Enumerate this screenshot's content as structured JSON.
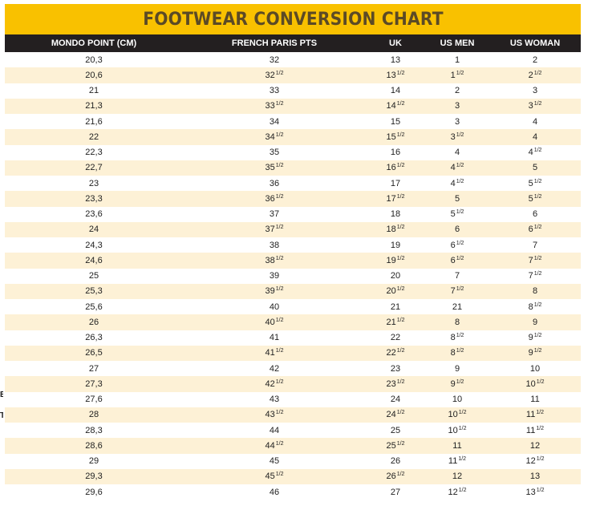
{
  "title": "FOOTWEAR CONVERSION CHART",
  "columns": [
    "MONDO POINT (CM)",
    "FRENCH PARIS PTS",
    "UK",
    "US MEN",
    "US WOMAN"
  ],
  "rows": [
    [
      "20,3",
      "32",
      "13",
      "1",
      "2"
    ],
    [
      "20,6",
      "32 1/2",
      "13 1/2",
      "1 1/2",
      "2 1/2"
    ],
    [
      "21",
      "33",
      "14",
      "2",
      "3"
    ],
    [
      "21,3",
      "33 1/2",
      "14 1/2",
      "3",
      "3 1/2"
    ],
    [
      "21,6",
      "34",
      "15",
      "3",
      "4"
    ],
    [
      "22",
      "34 1/2",
      "15 1/2",
      "3 1/2",
      "4"
    ],
    [
      "22,3",
      "35",
      "16",
      "4",
      "4 1/2"
    ],
    [
      "22,7",
      "35 1/2",
      "16 1/2",
      "4 1/2",
      "5"
    ],
    [
      "23",
      "36",
      "17",
      "4 1/2",
      "5 1/2"
    ],
    [
      "23,3",
      "36 1/2",
      "17 1/2",
      "5",
      "5 1/2"
    ],
    [
      "23,6",
      "37",
      "18",
      "5 1/2",
      "6"
    ],
    [
      "24",
      "37 1/2",
      "18 1/2",
      "6",
      "6 1/2"
    ],
    [
      "24,3",
      "38",
      "19",
      "6 1/2",
      "7"
    ],
    [
      "24,6",
      "38 1/2",
      "19 1/2",
      "6 1/2",
      "7 1/2"
    ],
    [
      "25",
      "39",
      "20",
      "7",
      "7 1/2"
    ],
    [
      "25,3",
      "39 1/2",
      "20 1/2",
      "7 1/2",
      "8"
    ],
    [
      "25,6",
      "40",
      "21",
      "21",
      "8 1/2"
    ],
    [
      "26",
      "40 1/2",
      "21 1/2",
      "8",
      "9"
    ],
    [
      "26,3",
      "41",
      "22",
      "8 1/2",
      "9 1/2"
    ],
    [
      "26,5",
      "41 1/2",
      "22 1/2",
      "8 1/2",
      "9 1/2"
    ],
    [
      "27",
      "42",
      "23",
      "9",
      "10"
    ],
    [
      "27,3",
      "42 1/2",
      "23 1/2",
      "9 1/2",
      "10 1/2"
    ],
    [
      "27,6",
      "43",
      "24",
      "10",
      "11"
    ],
    [
      "28",
      "43 1/2",
      "24 1/2",
      "10 1/2",
      "11 1/2"
    ],
    [
      "28,3",
      "44",
      "25",
      "10 1/2",
      "11 1/2"
    ],
    [
      "28,6",
      "44 1/2",
      "25 1/2",
      "11",
      "12"
    ],
    [
      "29",
      "45",
      "26",
      "11 1/2",
      "12 1/2"
    ],
    [
      "29,3",
      "45 1/2",
      "26 1/2",
      "12",
      "13"
    ],
    [
      "29,6",
      "46",
      "27",
      "12 1/2",
      "13 1/2"
    ]
  ],
  "edge_marks": [
    "E",
    "T"
  ],
  "colors": {
    "title_bg": "#f9c100",
    "title_text": "#5b4a26",
    "header_bg": "#231f20",
    "alt_row_bg": "#fdf1d6"
  }
}
